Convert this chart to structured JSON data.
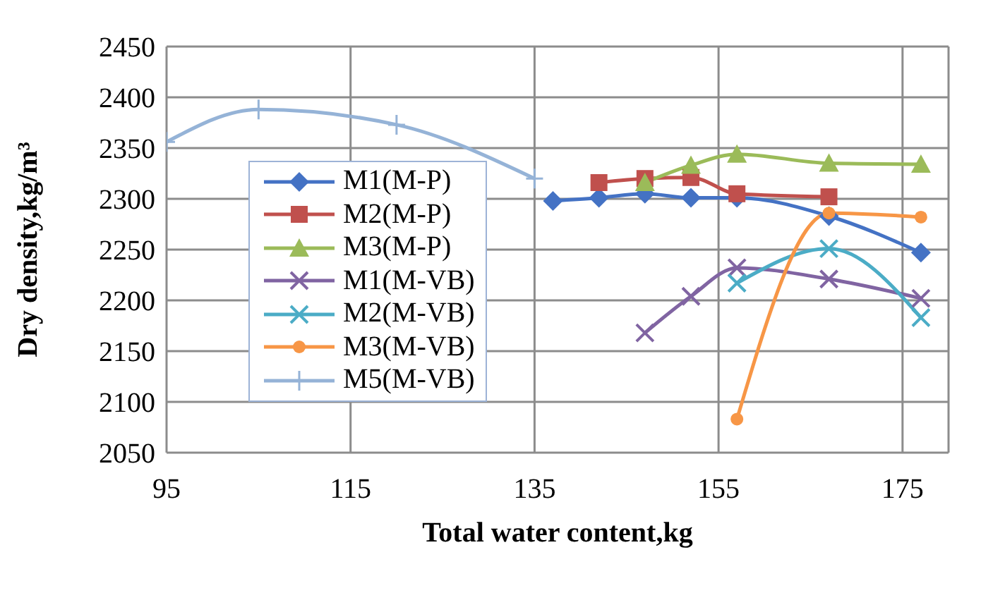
{
  "chart_data": {
    "type": "line",
    "xlabel": "Total water content,kg",
    "ylabel": "Dry density,kg/m³",
    "xlim": [
      95,
      180
    ],
    "xticks": [
      95,
      115,
      135,
      155,
      175
    ],
    "ylim": [
      2050,
      2450
    ],
    "yticks": [
      2050,
      2100,
      2150,
      2200,
      2250,
      2300,
      2350,
      2400,
      2450
    ],
    "grid": true,
    "legend": "left",
    "series": [
      {
        "name": "M1(M-P)",
        "color": "#4472c4",
        "marker": "diamond",
        "x": [
          137,
          142,
          147,
          152,
          157,
          167,
          177
        ],
        "values": [
          2298,
          2301,
          2305,
          2301,
          2301,
          2283,
          2247
        ]
      },
      {
        "name": "M2(M-P)",
        "color": "#c0504d",
        "marker": "square",
        "x": [
          142,
          147,
          152,
          157,
          167
        ],
        "values": [
          2316,
          2320,
          2321,
          2305,
          2302
        ]
      },
      {
        "name": "M3(M-P)",
        "color": "#9bbb59",
        "marker": "triangle",
        "x": [
          147,
          152,
          157,
          167,
          177
        ],
        "values": [
          2316,
          2333,
          2344,
          2335,
          2334
        ]
      },
      {
        "name": "M1(M-VB)",
        "color": "#8064a2",
        "marker": "cross",
        "x": [
          147,
          152,
          157,
          167,
          177
        ],
        "values": [
          2168,
          2204,
          2232,
          2221,
          2202
        ]
      },
      {
        "name": "M2(M-VB)",
        "color": "#4bacc6",
        "marker": "cross",
        "x": [
          157,
          167,
          177
        ],
        "values": [
          2217,
          2251,
          2183
        ]
      },
      {
        "name": "M3(M-VB)",
        "color": "#f79646",
        "marker": "circle",
        "x": [
          157,
          167,
          177
        ],
        "values": [
          2083,
          2286,
          2282
        ]
      },
      {
        "name": "M5(M-VB)",
        "color": "#95b3d7",
        "marker": "plus",
        "x": [
          95,
          105,
          120,
          135
        ],
        "values": [
          2356,
          2388,
          2373,
          2320
        ]
      }
    ]
  }
}
